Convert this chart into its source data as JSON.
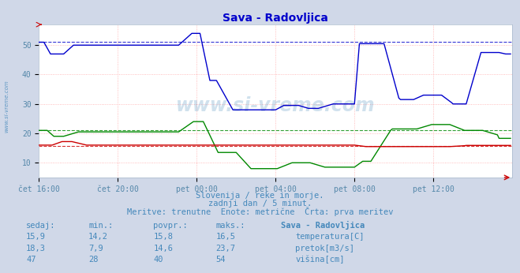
{
  "title": "Sava - Radovljica",
  "title_color": "#0000cc",
  "bg_color": "#d0d8e8",
  "plot_bg_color": "#ffffff",
  "grid_color": "#ffaaaa",
  "grid_color_v": "#ddaaaa",
  "xlabel_color": "#5588aa",
  "text_color": "#4488bb",
  "watermark_color": "#4488bb",
  "ylim": [
    5,
    57
  ],
  "yticks": [
    10,
    20,
    30,
    40,
    50
  ],
  "xlim": [
    0,
    288
  ],
  "xtick_labels": [
    "čet 16:00",
    "čet 20:00",
    "pet 00:00",
    "pet 04:00",
    "pet 08:00",
    "pet 12:00"
  ],
  "xtick_positions": [
    0,
    48,
    96,
    144,
    192,
    240
  ],
  "subtitle1": "Slovenija / reke in morje.",
  "subtitle2": "zadnji dan / 5 minut.",
  "subtitle3": "Meritve: trenutne  Enote: metrične  Črta: prva meritev",
  "table_headers": [
    "sedaj:",
    "min.:",
    "povpr.:",
    "maks.:",
    "Sava - Radovljica"
  ],
  "table_row1": [
    "15,9",
    "14,2",
    "15,8",
    "16,5",
    "temperatura[C]"
  ],
  "table_row2": [
    "18,3",
    "7,9",
    "14,6",
    "23,7",
    "pretok[m3/s]"
  ],
  "table_row3": [
    "47",
    "28",
    "40",
    "54",
    "višina[cm]"
  ],
  "color_temp": "#cc0000",
  "color_flow": "#008800",
  "color_height": "#0000cc",
  "avg_temp": 15.8,
  "avg_flow": 21.0,
  "avg_height": 51.0,
  "watermark": "www.si-vreme.com",
  "left_label": "www.si-vreme.com"
}
